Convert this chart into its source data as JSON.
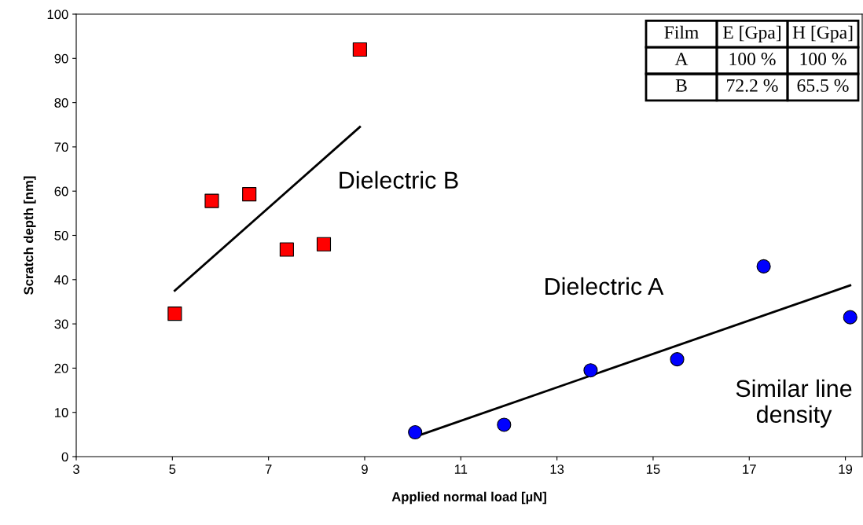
{
  "chart_data": {
    "type": "scatter",
    "xlabel": "Applied normal load [µN]",
    "ylabel": "Scratch depth [nm]",
    "xlim": [
      3,
      19.35
    ],
    "xticks": [
      3,
      5,
      7,
      9,
      11,
      13,
      15,
      17,
      19
    ],
    "ylim": [
      0,
      100
    ],
    "yticks": [
      0,
      10,
      20,
      30,
      40,
      50,
      60,
      70,
      80,
      90,
      100
    ],
    "grid": false,
    "legend": false,
    "series": [
      {
        "marker": "square",
        "color": "#ff0000",
        "x": [
          5.05,
          5.82,
          6.6,
          7.38,
          8.15,
          8.9
        ],
        "values": [
          32.3,
          57.8,
          59.3,
          46.8,
          48,
          92
        ]
      },
      {
        "marker": "circle",
        "color": "#0000ff",
        "x": [
          10.05,
          11.9,
          13.7,
          15.5,
          17.3,
          19.1
        ],
        "values": [
          5.5,
          7.2,
          19.5,
          22,
          43,
          31.5
        ]
      },
      {
        "type": "line",
        "color": "#000000",
        "x": [
          5.05,
          8.9
        ],
        "values": [
          37.5,
          74.5
        ]
      },
      {
        "type": "line",
        "color": "#000000",
        "x": [
          10.05,
          19.1
        ],
        "values": [
          4.5,
          38.7
        ]
      }
    ],
    "annotations": [
      "Dielectric B",
      "Dielectric A",
      "Similar line\ndensity",
      "Film",
      "E [Gpa]",
      "H [Gpa]",
      "A",
      "100 %",
      "100 %",
      "B",
      "72.2 %",
      "65.5 %"
    ]
  }
}
